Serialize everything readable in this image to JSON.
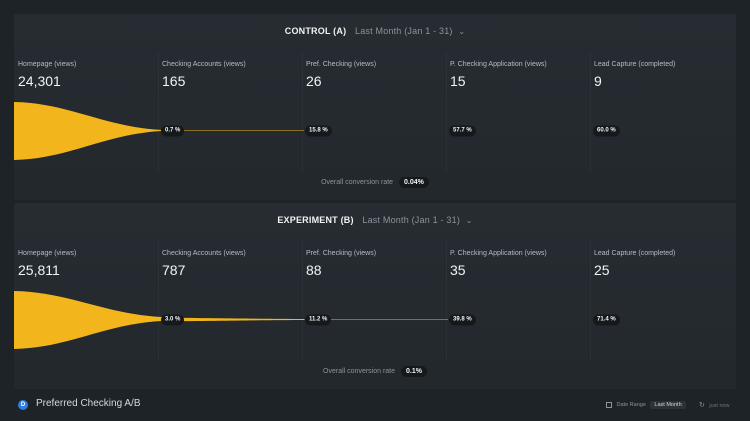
{
  "colors": {
    "funnel": "#f2b51c",
    "badge_bg": "#16191c",
    "panel_bg": "#262c31",
    "background": "#1e2327"
  },
  "panels": [
    {
      "name": "CONTROL (A)",
      "range": "Last Month (Jan 1 - 31)",
      "steps": [
        {
          "label": "Homepage (views)",
          "value": "24,301"
        },
        {
          "label": "Checking Accounts (views)",
          "value": "165"
        },
        {
          "label": "Pref. Checking (views)",
          "value": "26"
        },
        {
          "label": "P. Checking Application (views)",
          "value": "15"
        },
        {
          "label": "Lead Capture (completed)",
          "value": "9"
        }
      ],
      "rates": [
        "0.7 %",
        "15.8 %",
        "57.7 %",
        "60.0 %"
      ],
      "overall_label": "Overall conversion rate",
      "overall_value": "0.04%"
    },
    {
      "name": "EXPERIMENT (B)",
      "range": "Last Month (Jan 1 - 31)",
      "steps": [
        {
          "label": "Homepage (views)",
          "value": "25,811"
        },
        {
          "label": "Checking Accounts (views)",
          "value": "787"
        },
        {
          "label": "Pref. Checking (views)",
          "value": "88"
        },
        {
          "label": "P. Checking Application (views)",
          "value": "35"
        },
        {
          "label": "Lead Capture (completed)",
          "value": "25"
        }
      ],
      "rates": [
        "3.0 %",
        "11.2 %",
        "39.8 %",
        "71.4 %"
      ],
      "overall_label": "Overall conversion rate",
      "overall_value": "0.1%"
    }
  ],
  "footer": {
    "logo_text": "D",
    "title": "Preferred Checking A/B",
    "date_range_label": "Date Range",
    "date_range_value": "Last Month",
    "updated": "just now"
  }
}
